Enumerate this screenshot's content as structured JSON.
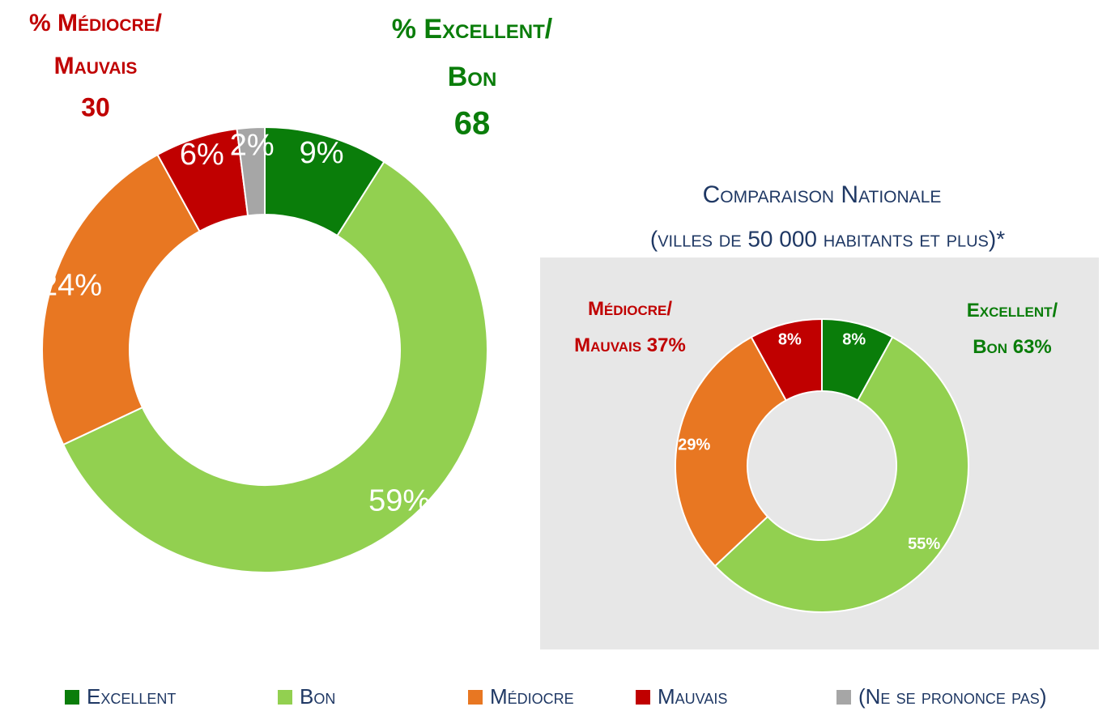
{
  "chart_data": [
    {
      "type": "donut",
      "categories": [
        "Excellent",
        "Bon",
        "Médiocre",
        "Mauvais",
        "(Ne se prononce pas)"
      ],
      "values": [
        9,
        59,
        24,
        6,
        2
      ],
      "value_labels": [
        "9%",
        "59%",
        "24%",
        "6%",
        "2%"
      ],
      "colors": [
        "#0a7d0a",
        "#92d050",
        "#e87722",
        "#c00000",
        "#a6a6a6"
      ],
      "legend": "bottom",
      "annotations": [
        {
          "lines": [
            "% Médiocre/",
            "Mauvais"
          ],
          "value": 30,
          "color": "#c00000"
        },
        {
          "lines": [
            "% Excellent/",
            "Bon"
          ],
          "value": 68,
          "color": "#0a7d0a"
        }
      ]
    },
    {
      "type": "donut",
      "title": "Comparaison Nationale",
      "subtitle": "(villes de 50 000 habitants et plus)*",
      "values": [
        8,
        55,
        29,
        8
      ],
      "value_labels": [
        "8%",
        "55%",
        "29%",
        "8%"
      ],
      "colors": [
        "#0a7d0a",
        "#92d050",
        "#e87722",
        "#c00000"
      ],
      "annotations": [
        {
          "lines": [
            "Médiocre/",
            "Mauvais"
          ],
          "value": 37,
          "value_label": "37%",
          "color": "#c00000"
        },
        {
          "lines": [
            "Excellent/",
            "Bon"
          ],
          "value": 63,
          "value_label": "63%",
          "color": "#0a7d0a"
        }
      ]
    }
  ]
}
